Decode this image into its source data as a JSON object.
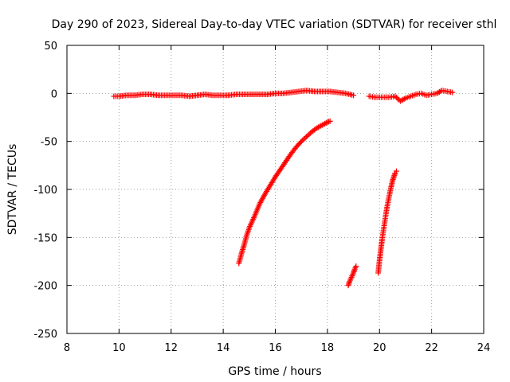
{
  "chart_data": {
    "type": "scatter",
    "title": "Day 290 of 2023, Sidereal Day-to-day VTEC variation (SDTVAR) for receiver sthl",
    "xlabel": "GPS time / hours",
    "ylabel": "SDTVAR / TECUs",
    "xlim": [
      8,
      24
    ],
    "ylim": [
      -250,
      50
    ],
    "xticks": [
      8,
      10,
      12,
      14,
      16,
      18,
      20,
      22,
      24
    ],
    "yticks": [
      50,
      0,
      -50,
      -100,
      -150,
      -200,
      -250
    ],
    "grid": true,
    "marker": "plus",
    "color": "#ff0000",
    "series": [
      {
        "x": [
          9.8,
          10.0,
          10.3,
          10.6,
          10.9,
          11.2,
          11.5,
          11.8,
          12.1,
          12.4,
          12.7,
          13.0,
          13.3,
          13.6,
          13.9,
          14.2,
          14.5,
          14.8,
          15.1,
          15.4,
          15.7,
          16.0,
          16.3,
          16.6,
          16.9,
          17.2,
          17.5,
          17.8,
          18.1,
          18.4,
          18.7,
          19.0
        ],
        "y": [
          -3,
          -3,
          -2,
          -2,
          -1,
          -1,
          -2,
          -2,
          -2,
          -2,
          -3,
          -2,
          -1,
          -2,
          -2,
          -2,
          -1,
          -1,
          -1,
          -1,
          -1,
          0,
          0,
          1,
          2,
          3,
          2,
          2,
          2,
          1,
          0,
          -2
        ]
      },
      {
        "x": [
          19.6,
          19.8,
          20.0,
          20.2,
          20.4,
          20.6,
          20.8,
          21.0,
          21.2,
          21.4,
          21.6,
          21.8,
          22.0,
          22.2,
          22.4,
          22.6,
          22.8
        ],
        "y": [
          -3,
          -4,
          -4,
          -4,
          -4,
          -3,
          -8,
          -5,
          -3,
          -1,
          0,
          -2,
          -1,
          0,
          3,
          2,
          1
        ]
      },
      {
        "x": [
          14.6,
          14.7,
          14.8,
          14.9,
          15.0,
          15.2,
          15.4,
          15.6,
          15.8,
          16.0,
          16.2,
          16.4,
          16.6,
          16.8,
          17.0,
          17.2,
          17.4,
          17.6,
          17.8,
          18.0,
          18.1
        ],
        "y": [
          -177,
          -167,
          -158,
          -148,
          -140,
          -128,
          -115,
          -105,
          -96,
          -87,
          -79,
          -71,
          -63,
          -56,
          -50,
          -45,
          -40,
          -36,
          -33,
          -30,
          -29
        ]
      },
      {
        "x": [
          18.8,
          18.85,
          18.9,
          18.95,
          19.0,
          19.05,
          19.1
        ],
        "y": [
          -200,
          -196,
          -193,
          -190,
          -187,
          -183,
          -180
        ]
      },
      {
        "x": [
          19.95,
          20.0,
          20.05,
          20.1,
          20.15,
          20.2,
          20.25,
          20.3,
          20.35,
          20.4,
          20.45,
          20.5,
          20.55,
          20.6,
          20.65
        ],
        "y": [
          -187,
          -174,
          -163,
          -152,
          -143,
          -134,
          -125,
          -117,
          -110,
          -103,
          -97,
          -91,
          -87,
          -83,
          -81
        ]
      }
    ]
  }
}
